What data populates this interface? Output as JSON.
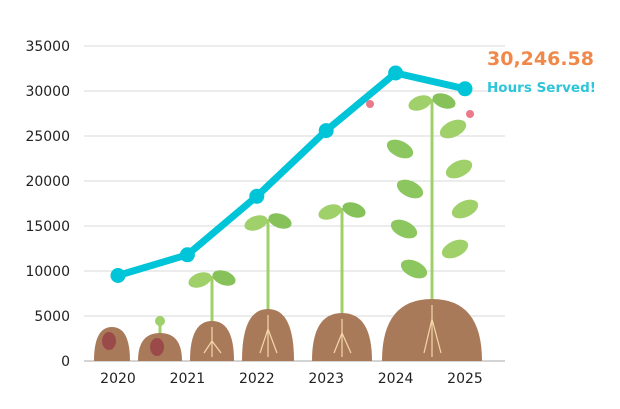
{
  "chart_data": {
    "type": "line",
    "title": "",
    "xlabel": "",
    "ylabel": "",
    "categories": [
      "2020",
      "2021",
      "2022",
      "2023",
      "2024",
      "2025"
    ],
    "series": [
      {
        "name": "Hours Served",
        "values": [
          9500,
          11800,
          18300,
          25600,
          32000,
          30246.58
        ]
      }
    ],
    "ylim": [
      0,
      35000
    ],
    "yticks": [
      "0",
      "5000",
      "10000",
      "15000",
      "20000",
      "25000",
      "30000",
      "35000"
    ],
    "grid": true,
    "annotation": {
      "value": "30,246.58",
      "label": "Hours Served!"
    }
  },
  "colors": {
    "line": "#00c4d8",
    "value": "#f0884a",
    "label": "#2ec5d9",
    "soil": "#a97a5a",
    "leaf": "#9fd06a"
  }
}
